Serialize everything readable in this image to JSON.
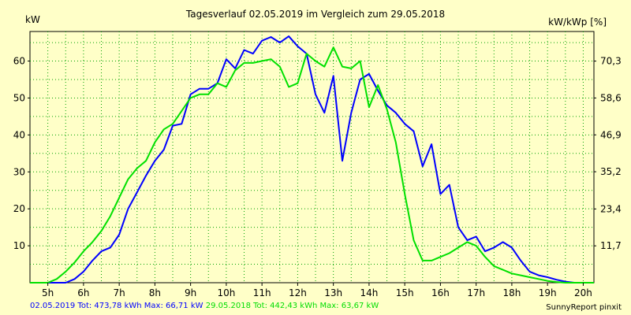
{
  "chart_data": {
    "type": "line",
    "title": "Tagesverlauf 02.05.2019 im Vergleich zum 29.05.2018",
    "ylabel": "kW",
    "ylabel_right": "kW/kWp [%]",
    "xlim": [
      4.5,
      20.3
    ],
    "ylim": [
      0,
      68
    ],
    "x_ticks": [
      5,
      6,
      7,
      8,
      9,
      10,
      11,
      12,
      13,
      14,
      15,
      16,
      17,
      18,
      19,
      20
    ],
    "x_tick_labels": [
      "5h",
      "6h",
      "7h",
      "8h",
      "9h",
      "10h",
      "11h",
      "12h",
      "13h",
      "14h",
      "15h",
      "16h",
      "17h",
      "18h",
      "19h",
      "20h"
    ],
    "y_ticks": [
      10,
      20,
      30,
      40,
      50,
      60
    ],
    "y_tick_labels": [
      "10",
      "20",
      "30",
      "40",
      "50",
      "60"
    ],
    "y2_ticks": [
      11.7,
      23.4,
      35.2,
      46.9,
      58.6,
      70.3
    ],
    "y2_tick_labels": [
      "11,7",
      "23,4",
      "35,2",
      "46,9",
      "58,6",
      "70,3"
    ],
    "y2_per_kw": 1.1719,
    "grid": true,
    "legend_position": "bottom-left",
    "series": [
      {
        "name": "02.05.2019",
        "summary": "02.05.2019 Tot: 473,78 kWh Max: 66,71 kW",
        "color": "#0000ff",
        "x": [
          4.5,
          5.5,
          5.75,
          6.0,
          6.25,
          6.5,
          6.75,
          7.0,
          7.25,
          7.5,
          7.75,
          8.0,
          8.25,
          8.5,
          8.75,
          9.0,
          9.25,
          9.5,
          9.75,
          10.0,
          10.25,
          10.5,
          10.75,
          11.0,
          11.25,
          11.5,
          11.75,
          12.0,
          12.25,
          12.5,
          12.75,
          13.0,
          13.25,
          13.5,
          13.75,
          14.0,
          14.25,
          14.5,
          14.75,
          15.0,
          15.25,
          15.5,
          15.75,
          16.0,
          16.25,
          16.5,
          16.75,
          17.0,
          17.25,
          17.5,
          17.75,
          18.0,
          18.25,
          18.5,
          18.75,
          19.0,
          19.25,
          19.5,
          19.75,
          20.0,
          20.3
        ],
        "values": [
          0,
          0,
          1,
          3,
          6,
          8.5,
          9.5,
          13,
          20,
          24.5,
          29,
          33,
          36,
          42.5,
          43,
          51,
          52.5,
          52.5,
          54,
          60.5,
          58,
          63,
          62,
          65.5,
          66.5,
          65,
          66.7,
          64,
          62,
          51,
          46,
          56,
          33,
          46,
          55,
          56.5,
          52,
          48,
          46,
          43,
          41,
          31.5,
          37.5,
          24,
          26.5,
          15,
          11.5,
          12.5,
          8.5,
          9.5,
          11,
          9.5,
          6,
          3,
          2,
          1.5,
          0.8,
          0.3,
          0,
          0,
          0
        ]
      },
      {
        "name": "29.05.2018",
        "summary": "29.05.2018 Tot: 442,43 kWh Max: 63,67 kW",
        "color": "#00e000",
        "x": [
          4.5,
          5.0,
          5.25,
          5.5,
          5.75,
          6.0,
          6.25,
          6.5,
          6.75,
          7.0,
          7.25,
          7.5,
          7.75,
          8.0,
          8.25,
          8.5,
          8.75,
          9.0,
          9.25,
          9.5,
          9.75,
          10.0,
          10.25,
          10.5,
          10.75,
          11.0,
          11.25,
          11.5,
          11.75,
          12.0,
          12.25,
          12.5,
          12.75,
          13.0,
          13.25,
          13.5,
          13.75,
          14.0,
          14.25,
          14.5,
          14.75,
          15.0,
          15.25,
          15.5,
          15.75,
          16.0,
          16.25,
          16.5,
          16.75,
          17.0,
          17.25,
          17.5,
          17.75,
          18.0,
          18.25,
          18.5,
          18.75,
          19.0,
          19.25,
          19.5,
          19.75,
          20.0,
          20.3
        ],
        "values": [
          0,
          0,
          1,
          3,
          5.5,
          8.5,
          11,
          14,
          18,
          23,
          28,
          31,
          33,
          38,
          41.5,
          43,
          46.5,
          50,
          51,
          51,
          54,
          53,
          57.5,
          59.5,
          59.5,
          60,
          60.5,
          58.5,
          53,
          54,
          62,
          60,
          58.5,
          63.7,
          58.5,
          58,
          60,
          47.5,
          53.5,
          47,
          38,
          24,
          11.5,
          6,
          6,
          7,
          8,
          9.5,
          11,
          10,
          7,
          4.5,
          3.5,
          2.5,
          2,
          1.5,
          1,
          0.5,
          0.2,
          0,
          0,
          0,
          0
        ]
      }
    ]
  },
  "footer": {
    "credit": "SunnyReport pinxit"
  }
}
